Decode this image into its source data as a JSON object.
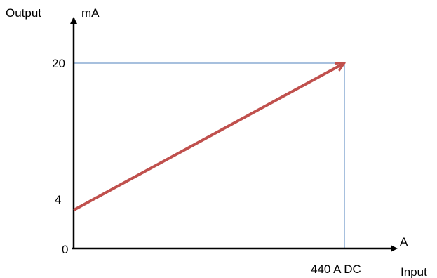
{
  "chart_data": {
    "type": "line",
    "y_axis_title": "Output",
    "y_unit": "mA",
    "x_axis_title": "Input",
    "x_unit": "A",
    "y_ticks": [
      "0",
      "4",
      "20"
    ],
    "x_tick_label": "440 A DC",
    "x_range": [
      0,
      440
    ],
    "y_range": [
      0,
      20
    ],
    "series": [
      {
        "x": [
          0,
          440
        ],
        "y": [
          4,
          20
        ]
      }
    ],
    "reference_point": {
      "x": 440,
      "y": 20
    },
    "colors": {
      "line": "#c0504d",
      "guide": "#4f81bd",
      "axis": "#000000"
    }
  }
}
